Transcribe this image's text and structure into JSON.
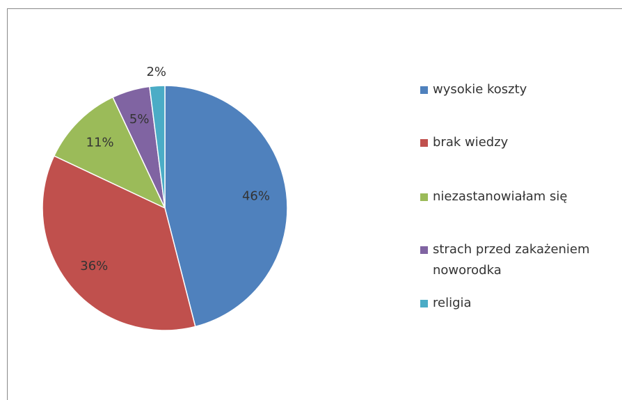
{
  "chart_data": {
    "type": "pie",
    "categories": [
      "wysokie koszty",
      "brak wiedzy",
      "niezastanowiałam się",
      "strach przed zakażeniem noworodka",
      "religia"
    ],
    "values": [
      46,
      36,
      11,
      5,
      2
    ],
    "value_labels": [
      "46%",
      "36%",
      "11%",
      "5%",
      "2%"
    ],
    "colors": [
      "#4f81bd",
      "#c0504d",
      "#9bbb59",
      "#8064a2",
      "#4bacc6"
    ],
    "legend": "right"
  }
}
